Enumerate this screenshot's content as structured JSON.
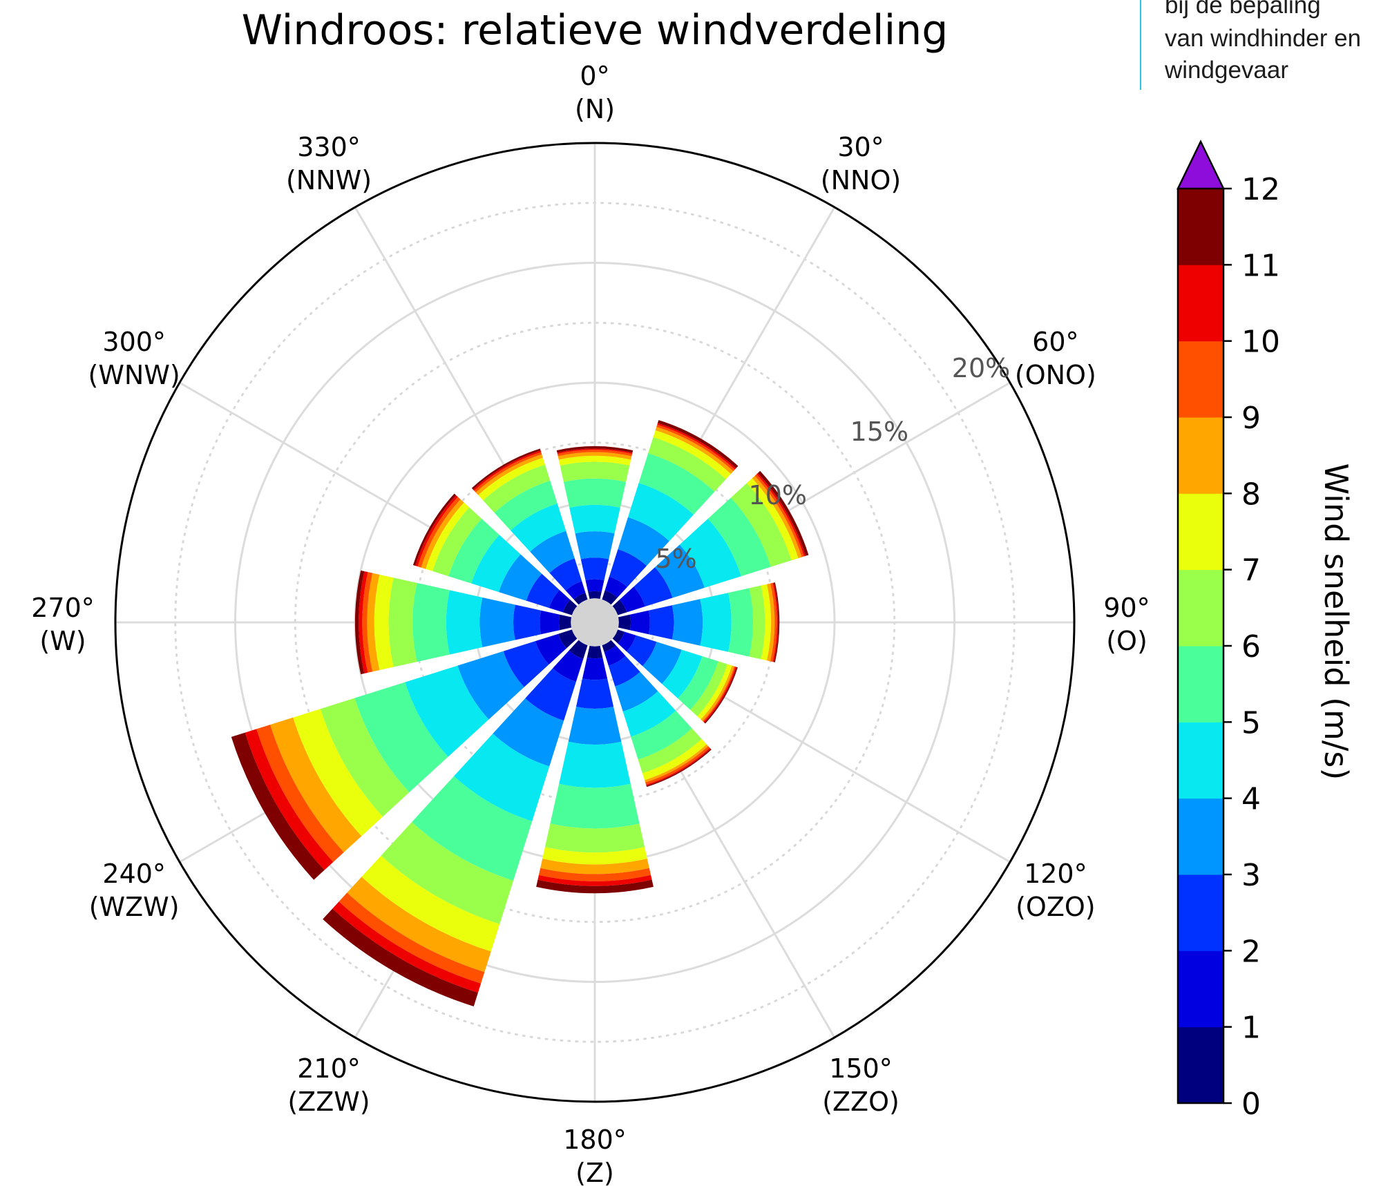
{
  "chart_data": {
    "type": "windrose",
    "title": "Windroos: relatieve windverdeling",
    "direction_labels": [
      {
        "deg": "0°",
        "dir": "(N)",
        "angle": 0
      },
      {
        "deg": "30°",
        "dir": "(NNO)",
        "angle": 30
      },
      {
        "deg": "60°",
        "dir": "(ONO)",
        "angle": 60
      },
      {
        "deg": "90°",
        "dir": "(O)",
        "angle": 90
      },
      {
        "deg": "120°",
        "dir": "(OZO)",
        "angle": 120
      },
      {
        "deg": "150°",
        "dir": "(ZZO)",
        "angle": 150
      },
      {
        "deg": "180°",
        "dir": "(Z)",
        "angle": 180
      },
      {
        "deg": "210°",
        "dir": "(ZZW)",
        "angle": 210
      },
      {
        "deg": "240°",
        "dir": "(WZW)",
        "angle": 240
      },
      {
        "deg": "270°",
        "dir": "(W)",
        "angle": 270
      },
      {
        "deg": "300°",
        "dir": "(WNW)",
        "angle": 300
      },
      {
        "deg": "330°",
        "dir": "(NNW)",
        "angle": 330
      }
    ],
    "radial_ticks": [
      "5%",
      "10%",
      "15%",
      "20%"
    ],
    "radial_tick_values": [
      5,
      10,
      15,
      20
    ],
    "rmax": 20,
    "speed_bins": [
      0,
      1,
      2,
      3,
      4,
      5,
      6,
      7,
      8,
      9,
      10,
      11,
      12
    ],
    "bin_colors": [
      "#00007f",
      "#0000e0",
      "#0032ff",
      "#0096ff",
      "#07e8f0",
      "#4aff9a",
      "#9aff4a",
      "#eaff0c",
      "#ffa700",
      "#ff5000",
      "#ef0000",
      "#7f0000",
      "#8f0ddb"
    ],
    "calm_color": "#d3d3d3",
    "series": [
      {
        "direction": 0,
        "cumulative": [
          1.0,
          1.3,
          1.8,
          2.7,
          3.8,
          4.9,
          6.0,
          6.7,
          6.95,
          7.1,
          7.2,
          7.25,
          7.35
        ]
      },
      {
        "direction": 30,
        "cumulative": [
          1.0,
          1.4,
          2.0,
          3.2,
          4.6,
          6.1,
          7.4,
          8.1,
          8.4,
          8.55,
          8.65,
          8.72,
          8.85
        ]
      },
      {
        "direction": 60,
        "cumulative": [
          1.0,
          1.4,
          2.2,
          3.4,
          4.8,
          6.4,
          7.7,
          8.6,
          8.9,
          9.05,
          9.15,
          9.22,
          9.35
        ]
      },
      {
        "direction": 90,
        "cumulative": [
          1.0,
          1.5,
          2.3,
          3.3,
          4.5,
          5.7,
          6.6,
          7.1,
          7.35,
          7.5,
          7.6,
          7.65,
          7.7
        ]
      },
      {
        "direction": 120,
        "cumulative": [
          1.0,
          1.3,
          1.8,
          2.7,
          3.8,
          4.7,
          5.4,
          5.8,
          6.0,
          6.1,
          6.15,
          6.2,
          6.25
        ]
      },
      {
        "direction": 150,
        "cumulative": [
          1.0,
          1.3,
          1.9,
          2.8,
          3.9,
          5.0,
          6.0,
          6.6,
          6.9,
          7.0,
          7.1,
          7.15,
          7.2
        ]
      },
      {
        "direction": 180,
        "cumulative": [
          1.0,
          1.5,
          2.4,
          3.6,
          5.1,
          6.9,
          8.6,
          9.6,
          10.1,
          10.5,
          10.8,
          11.0,
          11.3
        ]
      },
      {
        "direction": 210,
        "cumulative": [
          1.0,
          1.6,
          2.6,
          4.3,
          6.3,
          8.7,
          11.3,
          13.2,
          14.4,
          15.3,
          15.8,
          16.2,
          16.8
        ]
      },
      {
        "direction": 240,
        "cumulative": [
          1.0,
          1.6,
          2.6,
          4.0,
          6.0,
          8.3,
          10.5,
          12.0,
          13.2,
          14.2,
          14.8,
          15.3,
          15.9
        ]
      },
      {
        "direction": 270,
        "cumulative": [
          1.0,
          1.5,
          2.3,
          3.4,
          4.8,
          6.2,
          7.6,
          8.6,
          9.2,
          9.5,
          9.7,
          9.85,
          10.0
        ]
      },
      {
        "direction": 300,
        "cumulative": [
          1.0,
          1.4,
          2.0,
          3.0,
          4.2,
          5.4,
          6.4,
          7.1,
          7.4,
          7.6,
          7.75,
          7.85,
          7.95
        ]
      },
      {
        "direction": 330,
        "cumulative": [
          1.0,
          1.3,
          1.8,
          2.8,
          4.0,
          5.2,
          6.2,
          6.9,
          7.2,
          7.35,
          7.45,
          7.52,
          7.6
        ]
      }
    ],
    "colorbar": {
      "label": "Wind snelheid (m/s)",
      "ticks": [
        "0",
        "1",
        "2",
        "3",
        "4",
        "5",
        "6",
        "7",
        "8",
        "9",
        "10",
        "11",
        "12"
      ],
      "extend": "max"
    }
  },
  "note": {
    "lines": [
      "bij de bepaling",
      "van windhinder en",
      "windgevaar"
    ]
  }
}
